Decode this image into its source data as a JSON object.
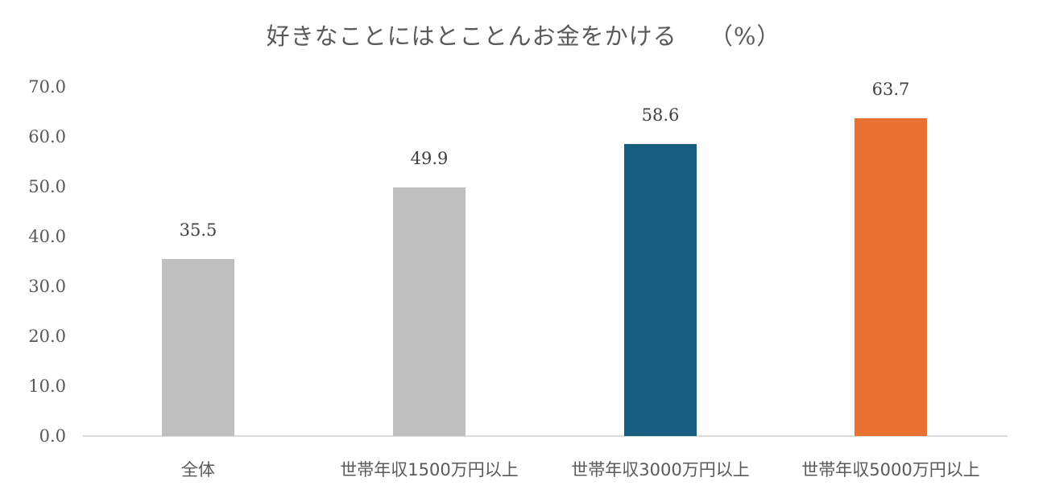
{
  "chart_data": {
    "type": "bar",
    "title": "好きなことにはとことんお金をかける　 （%）",
    "xlabel": "",
    "ylabel": "%",
    "ylim": [
      0,
      70
    ],
    "yticks": [
      "0.0",
      "10.0",
      "20.0",
      "30.0",
      "40.0",
      "50.0",
      "60.0",
      "70.0"
    ],
    "grid": false,
    "legend": null,
    "categories": [
      "全体",
      "世帯年収1500万円以上",
      "世帯年収3000万円以上",
      "世帯年収5000万円以上"
    ],
    "values": [
      35.5,
      49.9,
      58.6,
      63.7
    ],
    "data_labels": [
      "35.5",
      "49.9",
      "58.6",
      "63.7"
    ],
    "colors": [
      "#bfbfbf",
      "#bfbfbf",
      "#175e80",
      "#e97132"
    ]
  }
}
